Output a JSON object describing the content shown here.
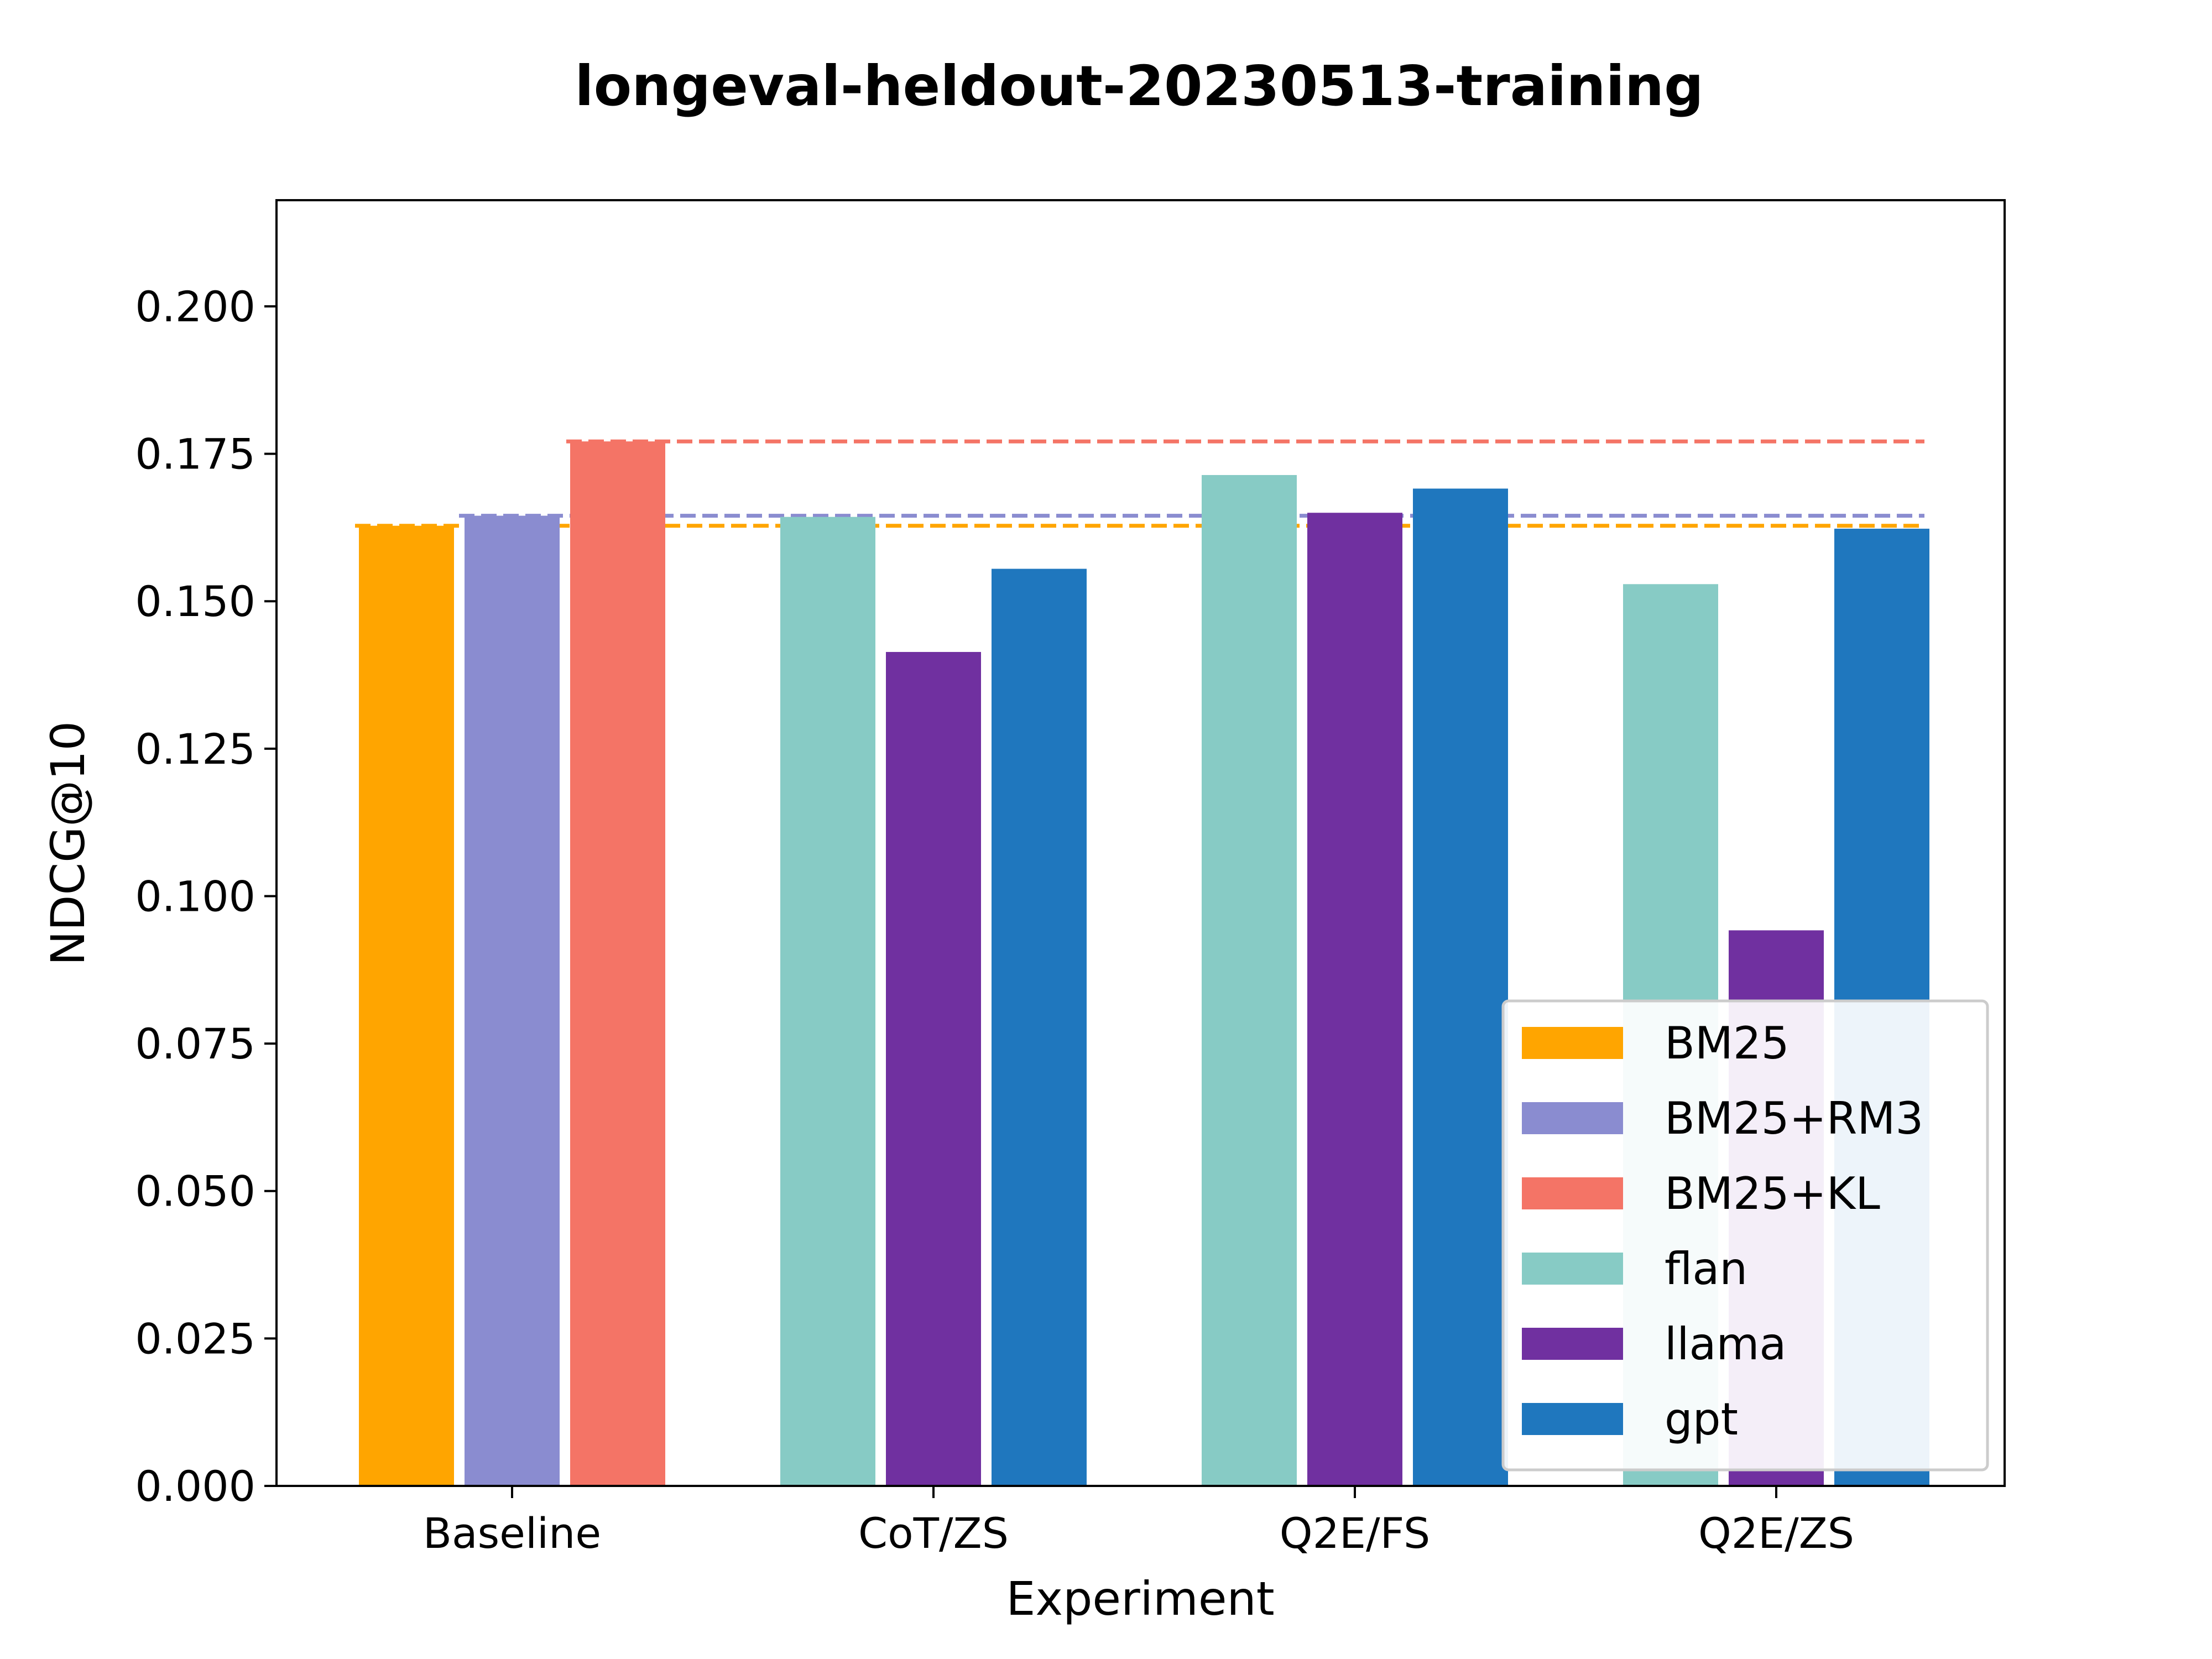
{
  "chart_data": {
    "type": "bar",
    "title": "longeval-heldout-20230513-training",
    "xlabel": "Experiment",
    "ylabel": "NDCG@10",
    "ylim": [
      0,
      0.218
    ],
    "yticks": [
      "0.000",
      "0.025",
      "0.050",
      "0.075",
      "0.100",
      "0.125",
      "0.150",
      "0.175",
      "0.200"
    ],
    "categories": [
      "Baseline",
      "CoT/ZS",
      "Q2E/FS",
      "Q2E/ZS"
    ],
    "series": [
      {
        "name": "BM25",
        "color": "#FFA500",
        "values": [
          0.1628,
          null,
          null,
          null
        ]
      },
      {
        "name": "BM25+RM3",
        "color": "#8A8CD0",
        "values": [
          0.1645,
          null,
          null,
          null
        ]
      },
      {
        "name": "BM25+KL",
        "color": "#F47466",
        "values": [
          0.1771,
          null,
          null,
          null
        ]
      },
      {
        "name": "flan",
        "color": "#87CBC5",
        "values": [
          null,
          0.1643,
          0.1714,
          0.1529
        ]
      },
      {
        "name": "llama",
        "color": "#7030A0",
        "values": [
          null,
          0.1414,
          0.165,
          0.0942
        ]
      },
      {
        "name": "gpt",
        "color": "#1F77BE",
        "values": [
          null,
          0.1555,
          0.1691,
          0.1623
        ]
      }
    ],
    "reference_lines": [
      {
        "series": "BM25",
        "value": 0.1628,
        "color": "#FFA500",
        "style": "dashed"
      },
      {
        "series": "BM25+RM3",
        "value": 0.1645,
        "color": "#8A8CD0",
        "style": "dashed"
      },
      {
        "series": "BM25+KL",
        "value": 0.1771,
        "color": "#F47466",
        "style": "dashed"
      }
    ],
    "grid": false,
    "legend_position": "lower-right"
  }
}
